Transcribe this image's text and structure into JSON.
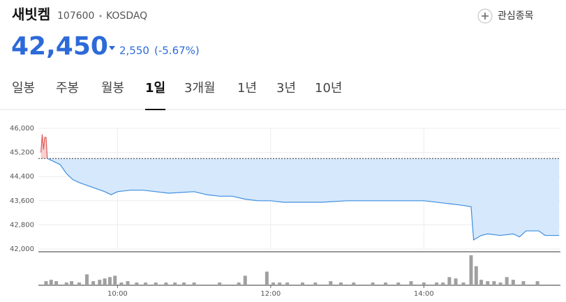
{
  "header": {
    "name": "새빗켐",
    "code": "107600",
    "market": "KOSDAQ",
    "watch": "관심종목",
    "price": "42,450",
    "change": "2,550",
    "change_rate": "(-5.67%)"
  },
  "tabs": [
    "일봉",
    "주봉",
    "월봉",
    "1일",
    "3개월",
    "1년",
    "3년",
    "10년"
  ],
  "selected_tab": 3,
  "chart_data": {
    "type": "line",
    "color": "#3d8fe0",
    "fill_below": "#d6e8fb",
    "fill_above": "#f7d0d0",
    "above_color": "#e35a5a",
    "reference": 45000,
    "x": [
      "09:00",
      "09:01",
      "09:02",
      "09:03",
      "09:04",
      "09:05",
      "09:10",
      "09:15",
      "09:20",
      "09:25",
      "09:30",
      "09:40",
      "09:50",
      "09:55",
      "10:00",
      "10:10",
      "10:20",
      "10:30",
      "10:40",
      "11:00",
      "11:10",
      "11:20",
      "11:30",
      "11:40",
      "11:50",
      "12:00",
      "12:10",
      "12:20",
      "12:40",
      "13:00",
      "13:20",
      "13:40",
      "14:00",
      "14:10",
      "14:20",
      "14:30",
      "14:37",
      "14:39",
      "14:45",
      "14:50",
      "15:00",
      "15:10",
      "15:15",
      "15:20",
      "15:30",
      "15:35",
      "15:46"
    ],
    "values": [
      45200,
      45800,
      45300,
      45700,
      45700,
      45000,
      44900,
      44800,
      44500,
      44300,
      44200,
      44050,
      43900,
      43800,
      43900,
      43950,
      43950,
      43900,
      43850,
      43900,
      43800,
      43750,
      43750,
      43650,
      43600,
      43600,
      43550,
      43550,
      43550,
      43600,
      43600,
      43600,
      43600,
      43550,
      43500,
      43450,
      43400,
      42300,
      42450,
      42500,
      42450,
      42500,
      42400,
      42600,
      42600,
      42450,
      42450
    ],
    "xlim": [
      "08:58",
      "15:47"
    ],
    "xticks": [
      "10:00",
      "12:00",
      "14:00"
    ],
    "ylim": [
      42000,
      46000
    ],
    "yticks": [
      {
        "value": 42000,
        "label": "42,000"
      },
      {
        "value": 42800,
        "label": "42,800"
      },
      {
        "value": 43600,
        "label": "43,600"
      },
      {
        "value": 44400,
        "label": "44,400"
      },
      {
        "value": 45200,
        "label": "45,200"
      },
      {
        "value": 46000,
        "label": "46,000"
      }
    ],
    "grid": true,
    "volume": {
      "color": "#a0a0a0",
      "x": [
        "09:04",
        "09:08",
        "09:12",
        "09:20",
        "09:24",
        "09:30",
        "09:36",
        "09:41",
        "09:46",
        "09:50",
        "09:54",
        "09:58",
        "10:03",
        "10:08",
        "10:15",
        "10:22",
        "10:30",
        "10:38",
        "10:45",
        "10:52",
        "11:00",
        "11:20",
        "11:35",
        "11:40",
        "11:57",
        "12:02",
        "12:07",
        "12:13",
        "12:25",
        "12:35",
        "12:47",
        "12:55",
        "13:05",
        "13:20",
        "13:30",
        "13:40",
        "13:50",
        "14:00",
        "14:10",
        "14:15",
        "14:20",
        "14:25",
        "14:31",
        "14:37",
        "14:41",
        "14:45",
        "14:50",
        "14:55",
        "15:00",
        "15:05",
        "15:10",
        "15:18",
        "15:29"
      ],
      "values": [
        3,
        4,
        3,
        2,
        3,
        2,
        8,
        3,
        4,
        5,
        6,
        7,
        2,
        3,
        2,
        2,
        2,
        2,
        2,
        2,
        2,
        2,
        2,
        7,
        10,
        2,
        2,
        2,
        2,
        2,
        3,
        2,
        2,
        2,
        2,
        2,
        3,
        2,
        2,
        2,
        6,
        5,
        2,
        22,
        14,
        4,
        3,
        3,
        2,
        6,
        4,
        3,
        3
      ]
    }
  }
}
